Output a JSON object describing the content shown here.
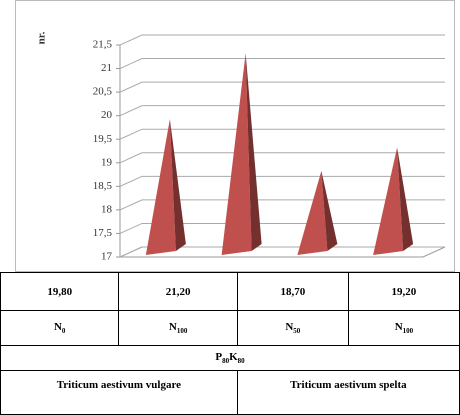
{
  "chart_data": {
    "type": "pyramid",
    "ylabel": "nr.",
    "categories": [
      "N0",
      "N100",
      "N50",
      "N100"
    ],
    "values": [
      19.8,
      21.2,
      18.7,
      19.2
    ],
    "value_labels": [
      "19,80",
      "21,20",
      "18,70",
      "19,20"
    ],
    "color": "#c0504d",
    "ylim": [
      17,
      21.5
    ],
    "yticks": [
      17,
      {
        "value": 17.5,
        "label": "17,5"
      },
      18,
      {
        "value": 18.5,
        "label": "18,5"
      },
      19,
      {
        "value": 19.5,
        "label": "19,5"
      },
      20,
      {
        "value": 20.5,
        "label": "20,5"
      },
      21,
      {
        "value": 21.5,
        "label": "21,5"
      }
    ],
    "grid": true,
    "treatment": "P80K80",
    "groups": [
      {
        "name": "Triticum aestivum vulgare",
        "span": 2
      },
      {
        "name": "Triticum aestivum spelta",
        "span": 2
      }
    ]
  }
}
